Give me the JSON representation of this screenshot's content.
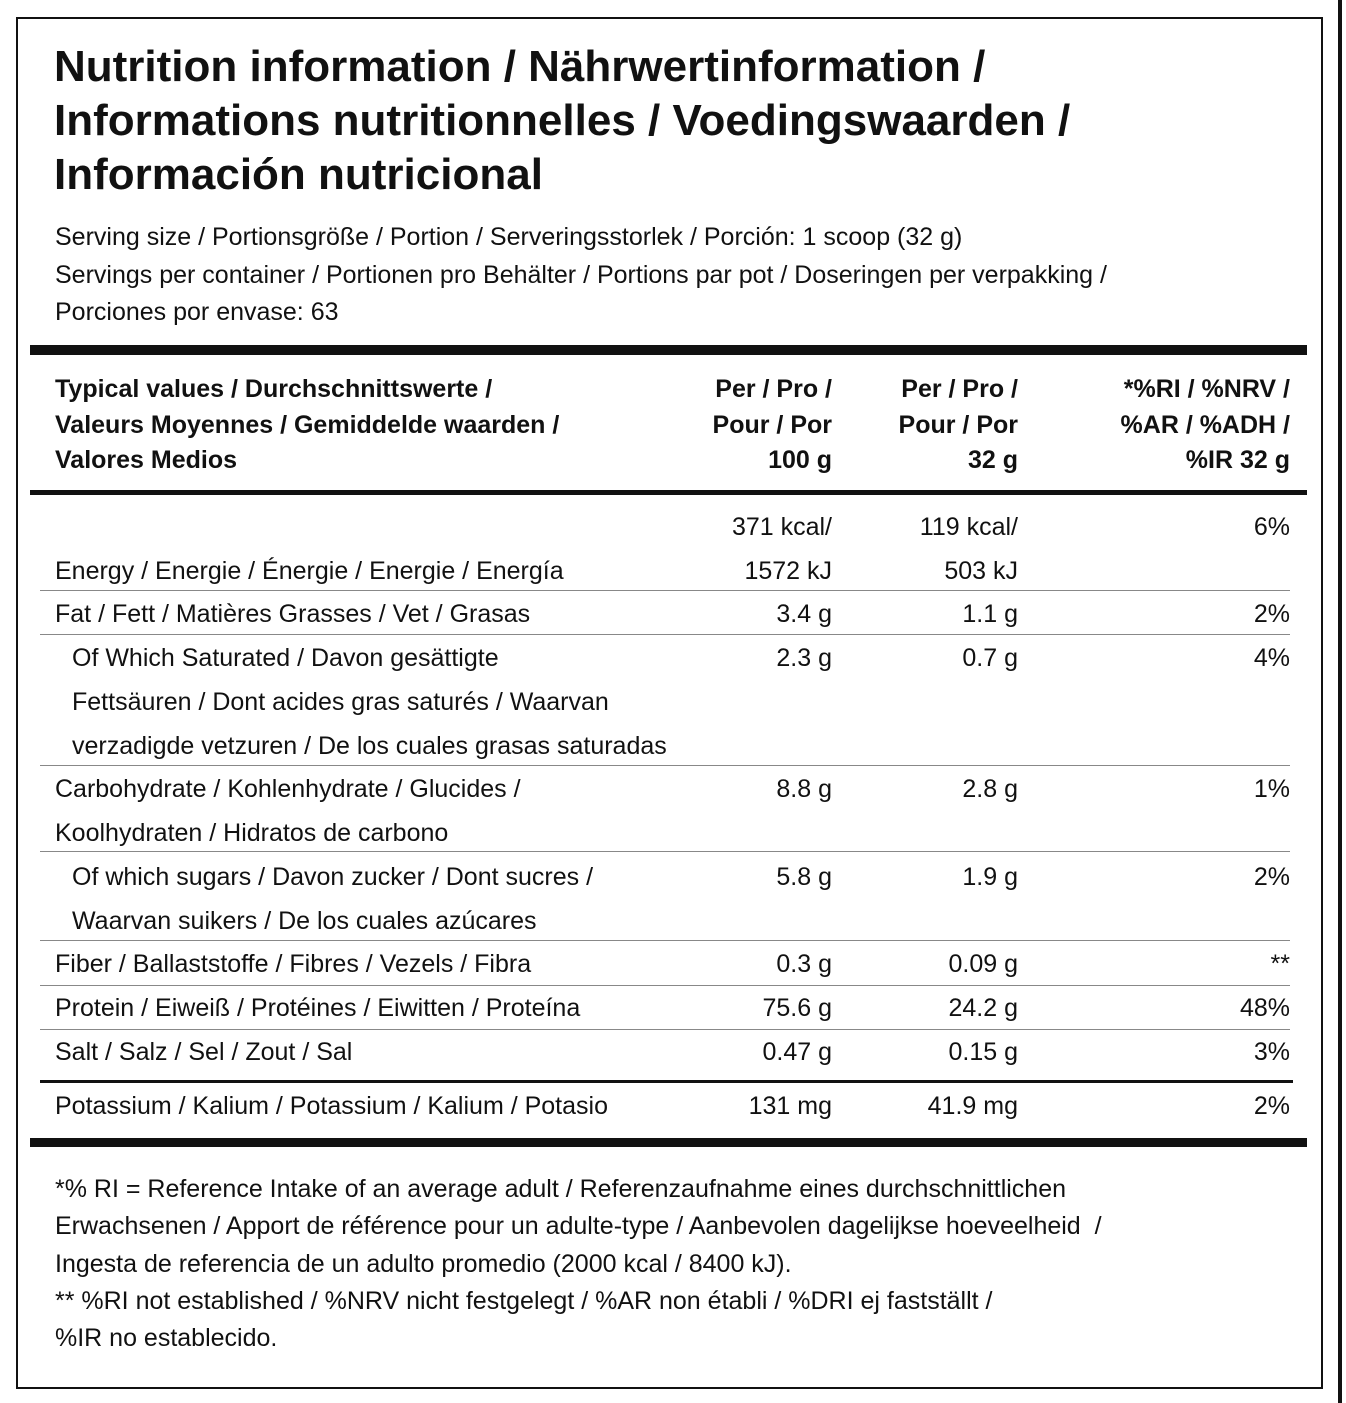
{
  "title": [
    "Nutrition information / Nährwertinformation /",
    "Informations nutritionnelles / Voedingswaarden /",
    "Información nutricional"
  ],
  "serving": [
    "Serving size / Portionsgröße / Portion / Serveringsstorlek / Porción: 1 scoop (32 g)",
    "Servings per container / Portionen pro Behälter / Portions par pot / Doseringen per verpakking /",
    "Porciones por envase: 63"
  ],
  "table": {
    "header": {
      "label": [
        "Typical values / Durchschnittswerte /",
        "Valeurs Moyennes / Gemiddelde waarden /",
        "Valores Medios"
      ],
      "per_100g": [
        "Per / Pro /",
        "Pour / Por",
        "100 g"
      ],
      "per_32g": [
        "Per / Pro /",
        "Pour / Por",
        "32 g"
      ],
      "ri": [
        "*%RI / %NRV /",
        "%AR / %ADH /",
        "%IR 32 g"
      ]
    },
    "rows": [
      {
        "label": [
          "Energy / Energie / Énergie / Energie / Energía"
        ],
        "per_100g": [
          "371 kcal/",
          "1572 kJ"
        ],
        "per_32g": [
          "119 kcal/",
          "503 kJ"
        ],
        "ri": [
          "6%"
        ]
      },
      {
        "label": [
          "Fat / Fett / Matières Grasses / Vet / Grasas"
        ],
        "per_100g": [
          "3.4 g"
        ],
        "per_32g": [
          "1.1 g"
        ],
        "ri": [
          "2%"
        ]
      },
      {
        "label": [
          "Of Which Saturated / Davon gesättigte",
          "Fettsäuren / Dont acides gras saturés / Waarvan",
          "verzadigde vetzuren / De los cuales grasas saturadas"
        ],
        "per_100g": [
          "2.3 g"
        ],
        "per_32g": [
          "0.7 g"
        ],
        "ri": [
          "4%"
        ]
      },
      {
        "label": [
          "Carbohydrate / Kohlenhydrate / Glucides /",
          "Koolhydraten / Hidratos de carbono"
        ],
        "per_100g": [
          "8.8 g"
        ],
        "per_32g": [
          "2.8 g"
        ],
        "ri": [
          "1%"
        ]
      },
      {
        "label": [
          "Of which sugars / Davon zucker / Dont sucres /",
          "Waarvan suikers / De los cuales azúcares"
        ],
        "per_100g": [
          "5.8 g"
        ],
        "per_32g": [
          "1.9 g"
        ],
        "ri": [
          "2%"
        ]
      },
      {
        "label": [
          "Fiber / Ballaststoffe / Fibres / Vezels / Fibra"
        ],
        "per_100g": [
          "0.3 g"
        ],
        "per_32g": [
          "0.09 g"
        ],
        "ri": [
          "**"
        ]
      },
      {
        "label": [
          "Protein / Eiweiß / Protéines / Eiwitten / Proteína"
        ],
        "per_100g": [
          "75.6 g"
        ],
        "per_32g": [
          "24.2 g"
        ],
        "ri": [
          "48%"
        ]
      },
      {
        "label": [
          "Salt / Salz / Sel / Zout / Sal"
        ],
        "per_100g": [
          "0.47 g"
        ],
        "per_32g": [
          "0.15 g"
        ],
        "ri": [
          "3%"
        ]
      },
      {
        "label": [
          "Potassium / Kalium / Potassium / Kalium / Potasio"
        ],
        "per_100g": [
          "131 mg"
        ],
        "per_32g": [
          "41.9 mg"
        ],
        "ri": [
          "2%"
        ]
      }
    ]
  },
  "footnotes": [
    "*% RI = Reference Intake of an average adult / Referenzaufnahme eines durchschnittlichen",
    "Erwachsenen / Apport de référence pour un adulte-type / Aanbevolen dagelijkse hoeveelheid  /",
    "Ingesta de referencia de un adulto promedio (2000 kcal / 8400 kJ).",
    "** %RI not established / %NRV nicht festgelegt / %AR non établi / %DRI ej fastställt /",
    "%IR no establecido."
  ]
}
